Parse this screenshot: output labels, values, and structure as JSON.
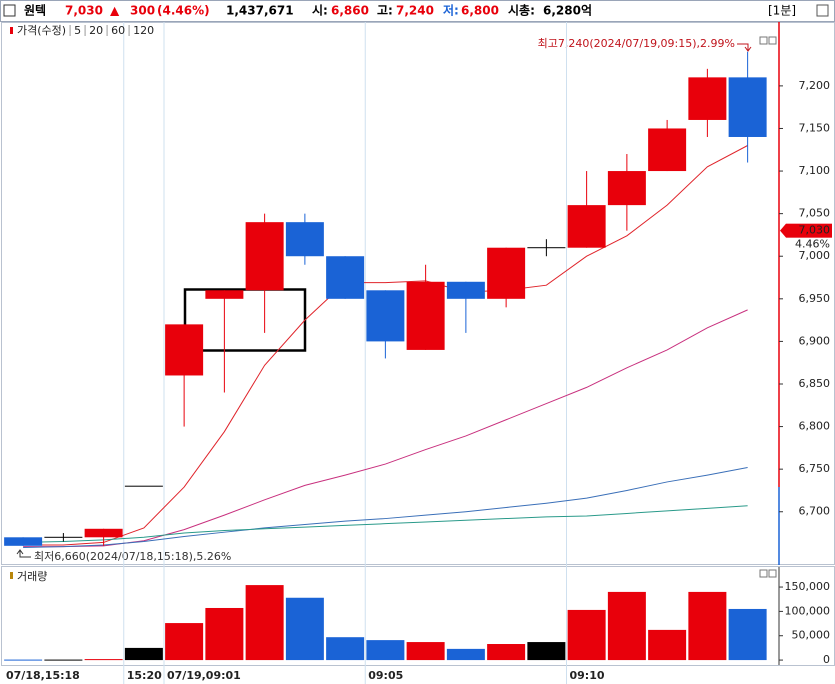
{
  "header": {
    "name": "원텍",
    "price": "7,030",
    "change_sign": "▲",
    "change": "300",
    "change_rate": "(4.46%)",
    "volume": "1,437,671",
    "open": {
      "label": "시:",
      "value": "6,860"
    },
    "high": {
      "label": "고:",
      "value": "7,240"
    },
    "low": {
      "label": "저:",
      "value": "6,800"
    },
    "market_cap": {
      "label": "시총:",
      "value": "6,280억"
    },
    "interval": "[1분]"
  },
  "chart_data": [
    {
      "type": "candlestick",
      "categories": [
        "07/18,15:18",
        null,
        null,
        "15:20",
        "07/19,09:01",
        null,
        null,
        null,
        null,
        "09:05",
        null,
        null,
        null,
        null,
        "09:10",
        null,
        null,
        null,
        null
      ],
      "series": [
        {
          "name": "가격(수정)",
          "color": "#e8000b",
          "up_color": "#e8000b",
          "down_color": "#1a63d6",
          "flat_color": "#000000",
          "open": [
            6670,
            6670,
            6670,
            6730,
            6860,
            6950,
            6960,
            7040,
            7000,
            6960,
            6890,
            6970,
            6950,
            7010,
            7010,
            7060,
            7100,
            7160,
            7210
          ],
          "high": [
            6670,
            6675,
            6680,
            6730,
            6920,
            6960,
            7050,
            7050,
            7000,
            6960,
            6990,
            6970,
            7010,
            7020,
            7100,
            7120,
            7160,
            7220,
            7240
          ],
          "low": [
            6660,
            6665,
            6660,
            6730,
            6800,
            6840,
            6910,
            6990,
            6950,
            6880,
            6890,
            6910,
            6940,
            7000,
            7010,
            7030,
            7100,
            7140,
            7110
          ],
          "close": [
            6660,
            6670,
            6680,
            6730,
            6920,
            6960,
            7040,
            7000,
            6950,
            6900,
            6970,
            6950,
            7010,
            7010,
            7060,
            7100,
            7150,
            7210,
            7140
          ]
        },
        {
          "name": "5",
          "type": "line",
          "color": "#e0242b",
          "values": [
            6661,
            6661,
            6664,
            6681,
            6729,
            6794,
            6872,
            6925,
            6969,
            6969,
            6971,
            6958,
            6960,
            6966,
            7000,
            7024,
            7060,
            7105,
            7130
          ]
        },
        {
          "name": "20",
          "type": "line",
          "color": "#c8307e",
          "values": [
            6659,
            6659,
            6660,
            6666,
            6679,
            6696,
            6714,
            6731,
            6743,
            6756,
            6773,
            6789,
            6808,
            6827,
            6846,
            6869,
            6890,
            6916,
            6937
          ]
        },
        {
          "name": "60",
          "type": "line",
          "color": "#3a6fb8",
          "values": [
            6658,
            6659,
            6661,
            6665,
            6671,
            6676,
            6681,
            6685,
            6689,
            6692,
            6696,
            6700,
            6705,
            6710,
            6716,
            6725,
            6735,
            6743,
            6752
          ]
        },
        {
          "name": "120",
          "type": "line",
          "color": "#2a9a8a",
          "values": [
            6664,
            6665,
            6667,
            6670,
            6675,
            6678,
            6680,
            6682,
            6684,
            6686,
            6688,
            6690,
            6692,
            6694,
            6695,
            6698,
            6701,
            6704,
            6707
          ]
        }
      ],
      "ylim": [
        6641,
        7275
      ],
      "yticks": [
        {
          "value": 6700,
          "label": "6,700"
        },
        {
          "value": 6750,
          "label": "6,750"
        },
        {
          "value": 6800,
          "label": "6,800"
        },
        {
          "value": 6850,
          "label": "6,850"
        },
        {
          "value": 6900,
          "label": "6,900"
        },
        {
          "value": 6950,
          "label": "6,950"
        },
        {
          "value": 7000,
          "label": "7,000"
        },
        {
          "value": 7050,
          "label": "7,050"
        },
        {
          "value": 7100,
          "label": "7,100"
        },
        {
          "value": 7150,
          "label": "7,150"
        },
        {
          "value": 7200,
          "label": "7,200"
        }
      ],
      "grid": false,
      "annotations": [
        "최고7,240(2024/07/19,09:15),2.99%",
        "최저6,660(2024/07/18,15:18),5.26%"
      ],
      "last_price": {
        "value": 7030,
        "label": "7,030",
        "change_label": "4.46%"
      }
    },
    {
      "type": "bar",
      "series": [
        {
          "name": "거래량",
          "color": "#b8860b",
          "values": [
            1000,
            1000,
            2000,
            25000,
            76000,
            107000,
            154000,
            128000,
            47000,
            41000,
            37000,
            23000,
            33000,
            37000,
            103000,
            140000,
            62000,
            140000,
            105000
          ],
          "colors": [
            "#1a63d6",
            "#000000",
            "#e8000b",
            "#000000",
            "#e8000b",
            "#e8000b",
            "#e8000b",
            "#1a63d6",
            "#1a63d6",
            "#1a63d6",
            "#e8000b",
            "#1a63d6",
            "#e8000b",
            "#000000",
            "#e8000b",
            "#e8000b",
            "#e8000b",
            "#e8000b",
            "#1a63d6"
          ]
        }
      ],
      "ylim": [
        -6000,
        185000
      ],
      "yticks": [
        0,
        {
          "value": 50000,
          "label": "50,000"
        },
        {
          "value": 100000,
          "label": "100,000"
        },
        {
          "value": 150000,
          "label": "150,000"
        }
      ]
    }
  ]
}
